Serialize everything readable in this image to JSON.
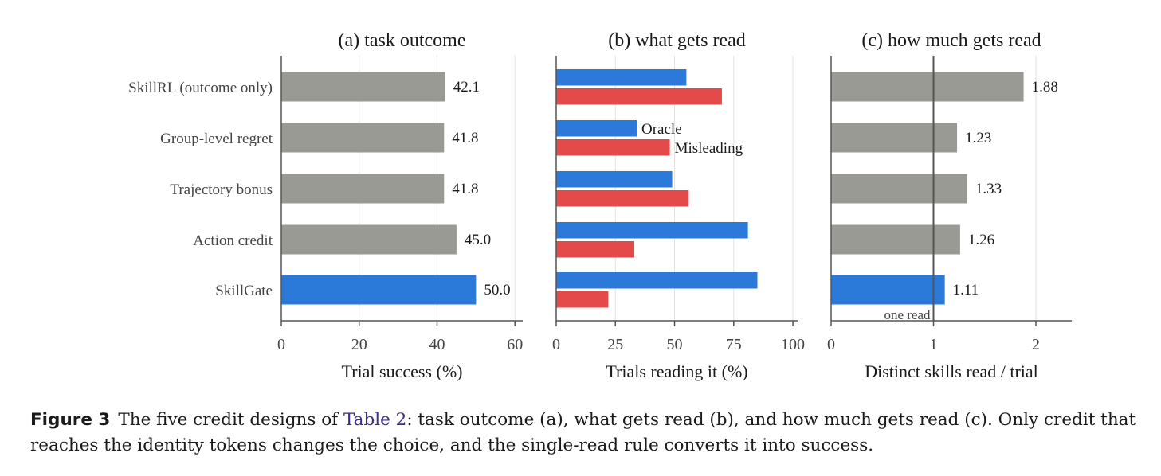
{
  "colors": {
    "gray": "#9a9a94",
    "blue": "#2b79d9",
    "red": "#e44a49",
    "axis": "#555555",
    "grid": "#e2e2e2",
    "refline": "#555555"
  },
  "categories": [
    "SkillRL (outcome only)",
    "Group-level regret",
    "Trajectory bonus",
    "Action credit",
    "SkillGate"
  ],
  "chart_data": [
    {
      "type": "bar",
      "orientation": "horizontal",
      "title": "(a) task outcome",
      "xlabel": "Trial success (%)",
      "categories": [
        "SkillRL (outcome only)",
        "Group-level regret",
        "Trajectory bonus",
        "Action credit",
        "SkillGate"
      ],
      "values": [
        42.1,
        41.8,
        41.8,
        45.0,
        50.0
      ],
      "value_labels": [
        "42.1",
        "41.8",
        "41.8",
        "45.0",
        "50.0"
      ],
      "highlight": "SkillGate",
      "xlim": [
        0,
        62
      ],
      "xticks": [
        0,
        20,
        40,
        60
      ],
      "grid": true
    },
    {
      "type": "bar",
      "orientation": "horizontal",
      "title": "(b) what gets read",
      "xlabel": "Trials reading it (%)",
      "categories": [
        "SkillRL (outcome only)",
        "Group-level regret",
        "Trajectory bonus",
        "Action credit",
        "SkillGate"
      ],
      "series": [
        {
          "name": "Oracle",
          "color": "blue",
          "values": [
            55,
            34,
            49,
            81,
            85
          ]
        },
        {
          "name": "Misleading",
          "color": "red",
          "values": [
            70,
            48,
            56,
            33,
            22
          ]
        }
      ],
      "xlim": [
        0,
        102
      ],
      "xticks": [
        0,
        25,
        50,
        75,
        100
      ],
      "grid": true,
      "legend": "inline-left"
    },
    {
      "type": "bar",
      "orientation": "horizontal",
      "title": "(c) how much gets read",
      "xlabel": "Distinct skills read / trial",
      "categories": [
        "SkillRL (outcome only)",
        "Group-level regret",
        "Trajectory bonus",
        "Action credit",
        "SkillGate"
      ],
      "values": [
        1.88,
        1.23,
        1.33,
        1.26,
        1.11
      ],
      "value_labels": [
        "1.88",
        "1.23",
        "1.33",
        "1.26",
        "1.11"
      ],
      "highlight": "SkillGate",
      "xlim": [
        0,
        2.35
      ],
      "xticks": [
        0,
        1,
        2
      ],
      "reference_line": {
        "x": 1,
        "label": "one read"
      },
      "grid": true
    }
  ],
  "caption": {
    "label": "Figure 3",
    "pre": "The five credit designs of ",
    "ref": "Table 2",
    "post": ": task outcome (a), what gets read (b), and how much gets read (c). Only credit that reaches the identity tokens changes the choice, and the single-read rule converts it into success."
  }
}
